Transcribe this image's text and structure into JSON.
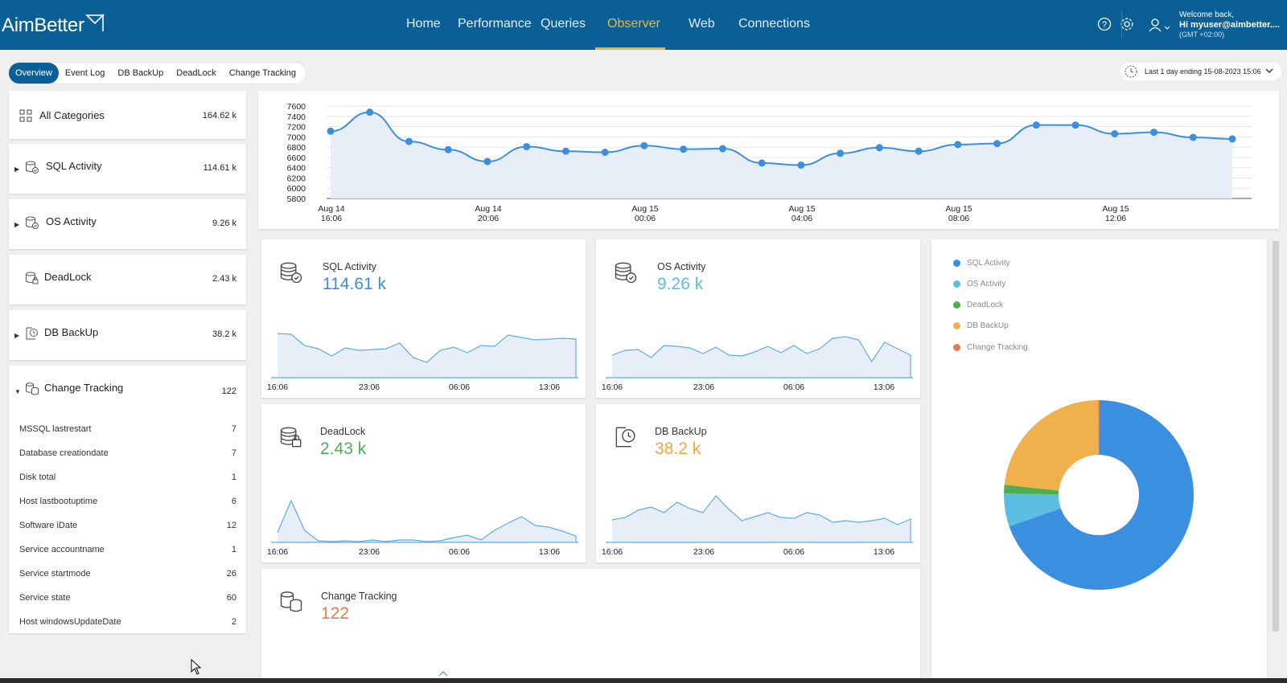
{
  "app": {
    "logo_text": "AimBetter",
    "user_welcome": "Welcome back,",
    "user_name": "Hi myuser@aimbetter....",
    "user_tz": "(GMT +02:00)"
  },
  "nav": {
    "items": [
      {
        "label": "Home"
      },
      {
        "label": "Performance"
      },
      {
        "label": "Queries"
      },
      {
        "label": "Observer",
        "active": true
      },
      {
        "label": "Web"
      },
      {
        "label": "Connections"
      }
    ]
  },
  "subtabs": [
    "Overview",
    "Event Log",
    "DB BackUp",
    "DeadLock",
    "Change Tracking"
  ],
  "time_range": "Last 1 day ending  15-08-2023 15:06",
  "categories": {
    "all": {
      "label": "All Categories",
      "count": "164.62 k"
    },
    "items": [
      {
        "label": "SQL Activity",
        "count": "114.61 k",
        "icon": "database-check-icon"
      },
      {
        "label": "OS Activity",
        "count": "9.26 k",
        "icon": "database-check-icon"
      },
      {
        "label": "DeadLock",
        "count": "2.43 k",
        "icon": "database-lock-icon"
      },
      {
        "label": "DB BackUp",
        "count": "38.2 k",
        "icon": "backup-icon"
      },
      {
        "label": "Change Tracking",
        "count": "122",
        "icon": "database-sync-icon"
      }
    ],
    "change_tracking_children": [
      {
        "label": "MSSQL lastrestart",
        "value": "7"
      },
      {
        "label": "Database creationdate",
        "value": "7"
      },
      {
        "label": "Disk total",
        "value": "1"
      },
      {
        "label": "Host lastbootuptime",
        "value": "6"
      },
      {
        "label": "Software iDate",
        "value": "12"
      },
      {
        "label": "Service accountname",
        "value": "1"
      },
      {
        "label": "Service startmode",
        "value": "26"
      },
      {
        "label": "Service state",
        "value": "60"
      },
      {
        "label": "Host windowsUpdateDate",
        "value": "2"
      }
    ]
  },
  "chart_data": [
    {
      "type": "line",
      "y_ticks": [
        "7600",
        "7400",
        "7200",
        "7000",
        "6800",
        "6600",
        "6400",
        "6200",
        "6000",
        "5800"
      ],
      "ylim": [
        5800,
        7600
      ],
      "x_ticks": [
        {
          "line1": "Aug 14",
          "line2": "16:06"
        },
        {
          "line1": "Aug 14",
          "line2": "20:06"
        },
        {
          "line1": "Aug 15",
          "line2": "00:06"
        },
        {
          "line1": "Aug 15",
          "line2": "04:06"
        },
        {
          "line1": "Aug 15",
          "line2": "08:06"
        },
        {
          "line1": "Aug 15",
          "line2": "12:06"
        }
      ],
      "x": [
        "Aug 14 16:06",
        "Aug 14 17:06",
        "Aug 14 18:06",
        "Aug 14 19:06",
        "Aug 14 20:06",
        "Aug 14 21:06",
        "Aug 14 22:06",
        "Aug 14 23:06",
        "Aug 15 00:06",
        "Aug 15 01:06",
        "Aug 15 02:06",
        "Aug 15 03:06",
        "Aug 15 04:06",
        "Aug 15 05:06",
        "Aug 15 06:06",
        "Aug 15 07:06",
        "Aug 15 08:06",
        "Aug 15 09:06",
        "Aug 15 10:06",
        "Aug 15 11:06",
        "Aug 15 12:06",
        "Aug 15 13:06",
        "Aug 15 14:06",
        "Aug 15 15:06"
      ],
      "values": [
        7110,
        7480,
        6910,
        6750,
        6520,
        6810,
        6720,
        6700,
        6830,
        6760,
        6770,
        6490,
        6450,
        6680,
        6790,
        6720,
        6850,
        6870,
        7230,
        7230,
        7060,
        7090,
        6990,
        6960
      ],
      "color": "#3b8fe0"
    },
    {
      "type": "area",
      "title": "SQL Activity",
      "total": "114.61 k",
      "color": "#3b8fe0",
      "x_ticks": [
        "16:06",
        "23:06",
        "06:06",
        "13:06"
      ],
      "values": [
        55,
        54,
        40,
        36,
        27,
        37,
        34,
        35,
        36,
        43,
        25,
        19,
        34,
        38,
        31,
        40,
        39,
        53,
        50,
        47,
        48,
        49,
        48
      ]
    },
    {
      "type": "area",
      "title": "OS Activity",
      "total": "9.26 k",
      "color": "#5bbde0",
      "x_ticks": [
        "16:06",
        "23:06",
        "06:06",
        "13:06"
      ],
      "values": [
        28,
        34,
        35,
        25,
        40,
        39,
        37,
        30,
        38,
        28,
        27,
        32,
        39,
        31,
        40,
        30,
        36,
        49,
        51,
        47,
        20,
        44,
        36,
        28
      ]
    },
    {
      "type": "area",
      "title": "DeadLock",
      "total": "2.43 k",
      "color": "#4caf50",
      "x_ticks": [
        "16:06",
        "23:06",
        "06:06",
        "13:06"
      ],
      "values": [
        12,
        52,
        15,
        2,
        1,
        2,
        1,
        3,
        1,
        3,
        3,
        1,
        2,
        6,
        9,
        3,
        15,
        24,
        32,
        21,
        19,
        14,
        8
      ]
    },
    {
      "type": "area",
      "title": "DB BackUp",
      "total": "38.2 k",
      "color": "#f0a93b",
      "x_ticks": [
        "16:06",
        "23:06",
        "06:06",
        "13:06"
      ],
      "values": [
        28,
        31,
        40,
        44,
        37,
        50,
        42,
        37,
        58,
        41,
        27,
        32,
        37,
        31,
        30,
        37,
        34,
        25,
        27,
        25,
        27,
        30,
        22,
        29
      ]
    },
    {
      "type": "area",
      "title": "Change Tracking",
      "total": "122",
      "color": "#e67d4a",
      "x_ticks": [],
      "values": []
    },
    {
      "type": "pie",
      "legend": [
        "SQL Activity",
        "OS Activity",
        "DeadLock",
        "DB BackUp",
        "Change Tracking"
      ],
      "values": [
        114610,
        9260,
        2430,
        38200,
        122
      ],
      "colors": [
        "#3b8fe0",
        "#5bbde0",
        "#4caf50",
        "#f0b04b",
        "#e67d4a"
      ]
    }
  ]
}
